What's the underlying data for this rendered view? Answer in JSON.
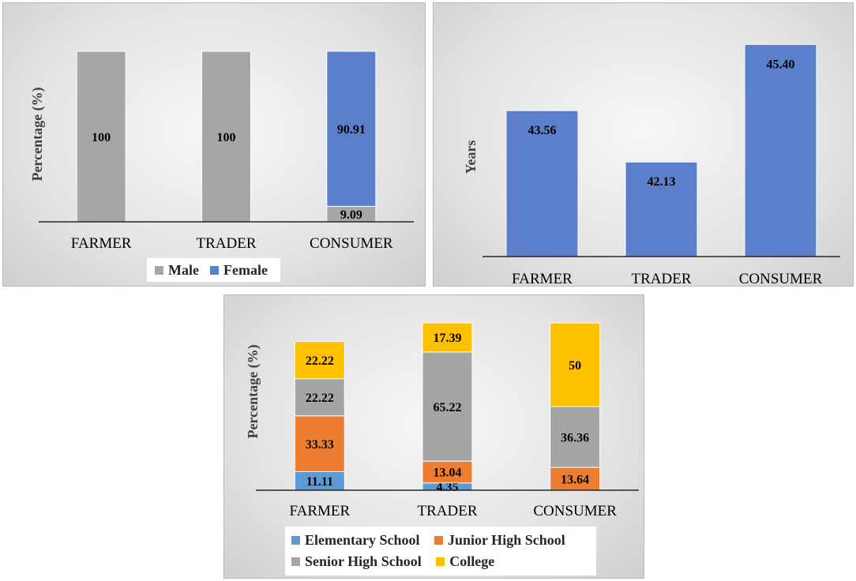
{
  "colors": {
    "male": "#a6a6a6",
    "female": "#5b7fcb",
    "age_bar": "#5b7fcb",
    "elementary": "#5b9bd5",
    "junior": "#ed7d31",
    "senior": "#a5a5a5",
    "college": "#ffc000",
    "axis": "#262626"
  },
  "chart_data": [
    {
      "type": "bar",
      "stacked": true,
      "ylabel": "Percentage (%)",
      "categories": [
        "FARMER",
        "TRADER",
        "CONSUMER"
      ],
      "series": [
        {
          "name": "Male",
          "values": [
            100,
            100,
            9.09
          ],
          "labels": [
            "100",
            "100",
            "9.09"
          ]
        },
        {
          "name": "Female",
          "values": [
            0,
            0,
            90.91
          ],
          "labels": [
            "",
            "",
            "90.91"
          ]
        }
      ],
      "ylim": [
        0,
        100
      ],
      "legend": "bottom",
      "grid": false
    },
    {
      "type": "bar",
      "ylabel": "Years",
      "categories": [
        "FARMER",
        "TRADER",
        "CONSUMER"
      ],
      "values": [
        43.56,
        42.13,
        45.4
      ],
      "labels": [
        "43.56",
        "42.13",
        "45.40"
      ],
      "ylim": [
        39.5,
        46
      ],
      "legend": "none",
      "grid": false
    },
    {
      "type": "bar",
      "stacked": true,
      "ylabel": "Percentage (%)",
      "categories": [
        "FARMER",
        "TRADER",
        "CONSUMER"
      ],
      "series": [
        {
          "name": "Elementary School",
          "values": [
            11.11,
            4.35,
            0
          ],
          "labels": [
            "11.11",
            "4.35",
            ""
          ]
        },
        {
          "name": "Junior High School",
          "values": [
            33.33,
            13.04,
            13.64
          ],
          "labels": [
            "33.33",
            "13.04",
            "13.64"
          ]
        },
        {
          "name": "Senior High School",
          "values": [
            22.22,
            65.22,
            36.36
          ],
          "labels": [
            "22.22",
            "65.22",
            "36.36"
          ]
        },
        {
          "name": "College",
          "values": [
            22.22,
            17.39,
            50
          ],
          "labels": [
            "22.22",
            "17.39",
            "50"
          ]
        }
      ],
      "ylim": [
        0,
        100
      ],
      "legend": "bottom",
      "grid": false
    }
  ]
}
